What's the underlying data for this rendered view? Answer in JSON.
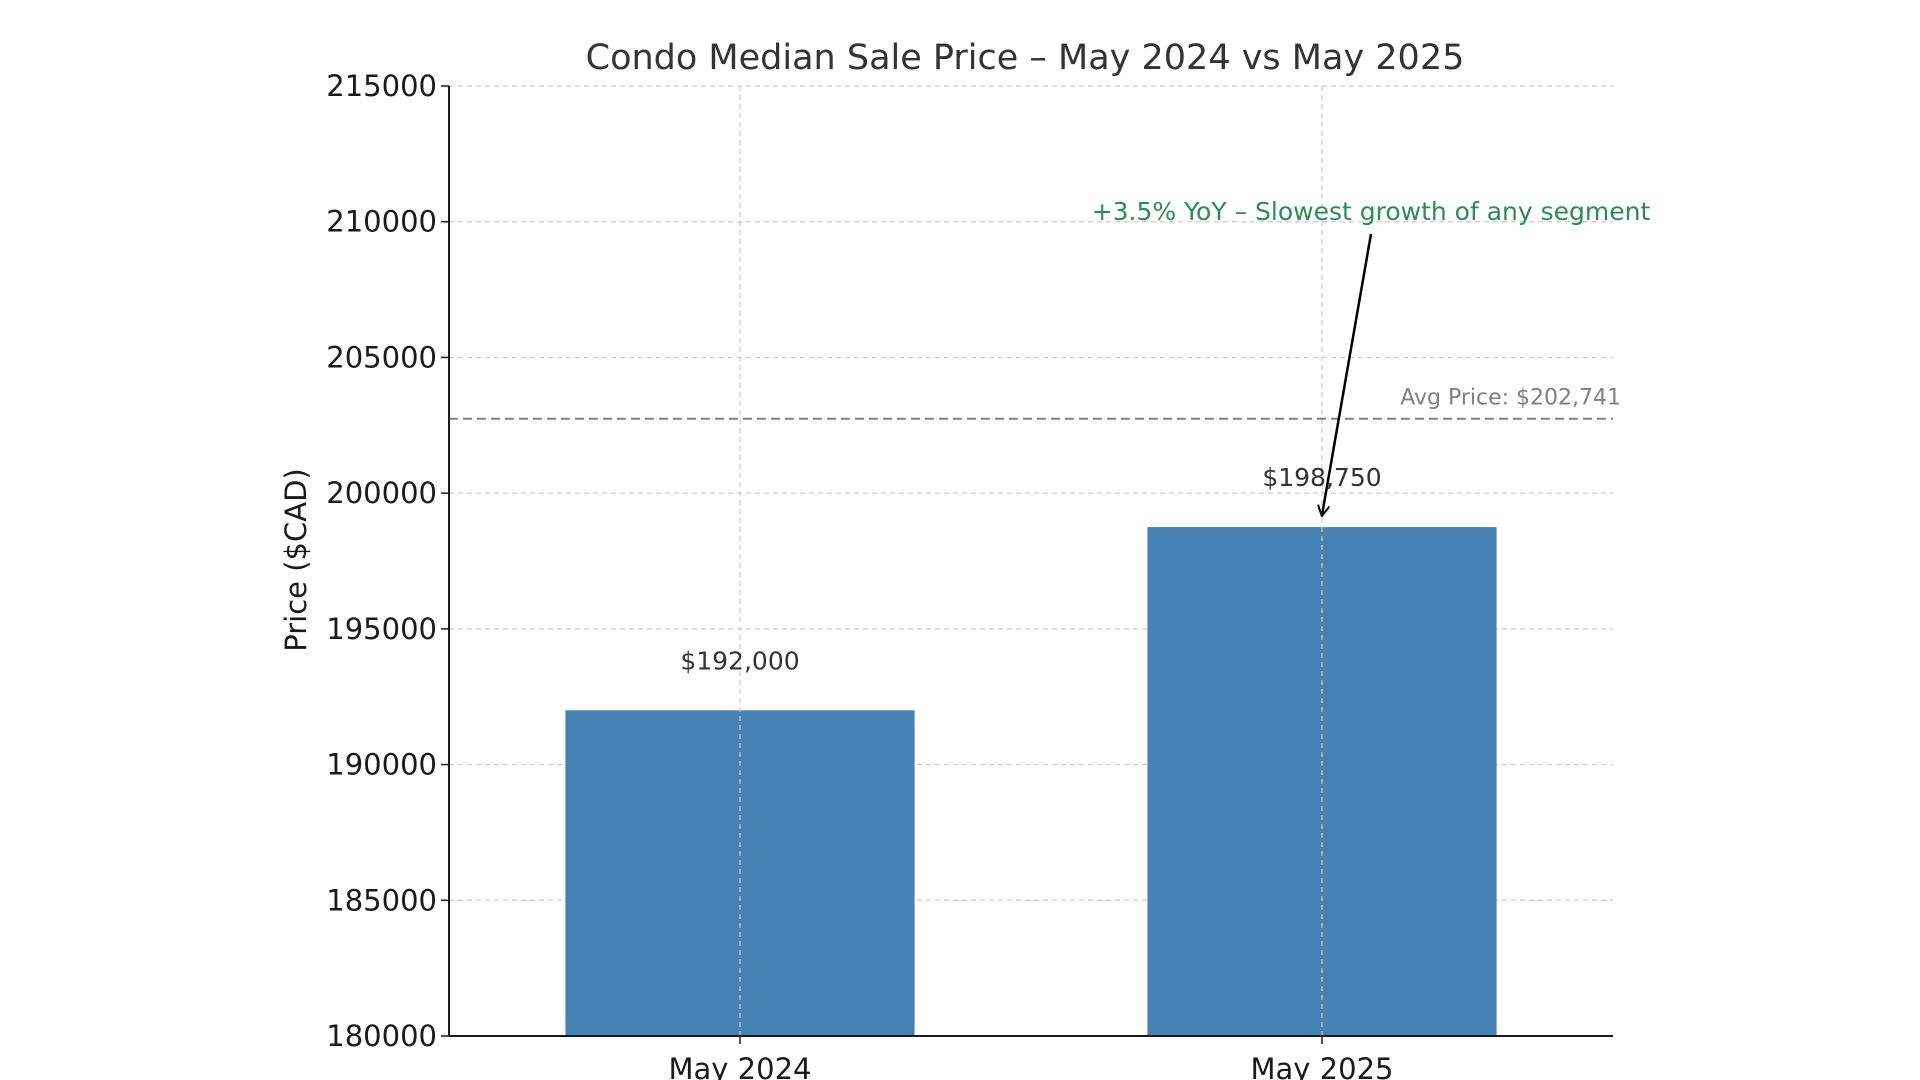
{
  "chart_data": {
    "type": "bar",
    "title": "Condo Median Sale Price – May 2024 vs May 2025",
    "xlabel": "",
    "ylabel": "Price ($CAD)",
    "categories": [
      "May 2024",
      "May 2025"
    ],
    "values": [
      192000,
      198750
    ],
    "value_labels": [
      "$192,000",
      "$198,750"
    ],
    "ylim": [
      180000,
      215000
    ],
    "yticks": [
      180000,
      185000,
      190000,
      195000,
      200000,
      205000,
      210000,
      215000
    ],
    "grid": true,
    "bar_color": "#4682B4",
    "reference_line": {
      "value": 202741,
      "label": "Avg Price: $202,741",
      "color": "#808080",
      "style": "dashed"
    },
    "annotation": {
      "text": "+3.5% YoY – Slowest growth of any segment",
      "color": "#2E8B57",
      "points_to": {
        "category": "May 2025",
        "value": 198750
      }
    }
  }
}
